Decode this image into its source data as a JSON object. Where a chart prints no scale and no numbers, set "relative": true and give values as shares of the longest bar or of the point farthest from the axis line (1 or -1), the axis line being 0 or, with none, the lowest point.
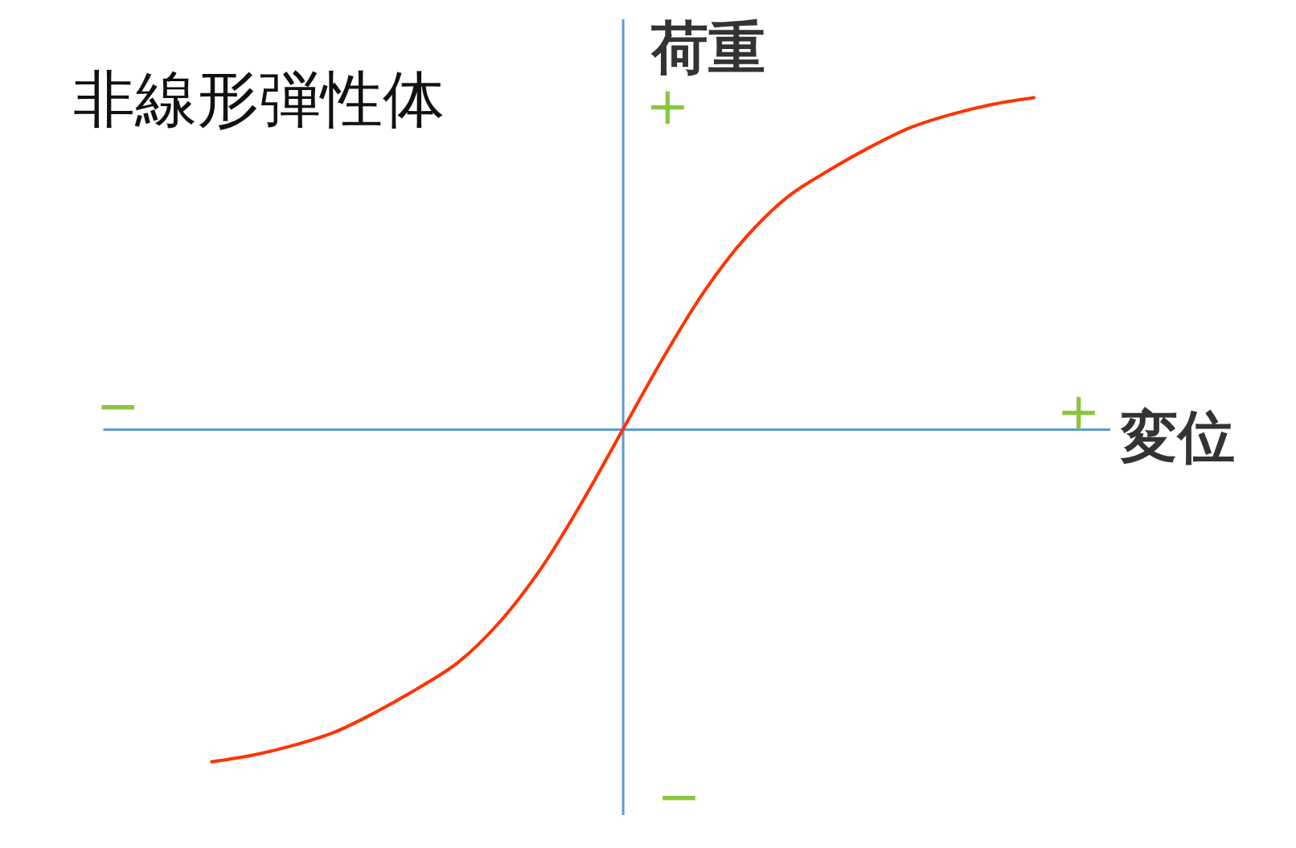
{
  "chart_data": {
    "type": "line",
    "title": "非線形弾性体",
    "xlabel": "変位",
    "ylabel": "荷重",
    "relative": true,
    "marker": "none",
    "categories": [
      null,
      null,
      null,
      null,
      null,
      null,
      null,
      null,
      null,
      null,
      null,
      null,
      null,
      null,
      null,
      null,
      null,
      null,
      null,
      null,
      null
    ],
    "series": [
      {
        "color": "#ff3300",
        "values": [
          -1,
          -0.98,
          -0.95,
          -0.91,
          -0.85,
          -0.78,
          -0.7,
          -0.58,
          -0.42,
          -0.22,
          0,
          0.22,
          0.42,
          0.58,
          0.7,
          0.78,
          0.85,
          0.91,
          0.95,
          0.98,
          1
        ]
      }
    ],
    "ref_lines": [
      {
        "axis": "y",
        "value": 0,
        "color": "#5b9bd5"
      }
    ],
    "annotations": [
      "+",
      "−",
      "+",
      "−"
    ]
  }
}
